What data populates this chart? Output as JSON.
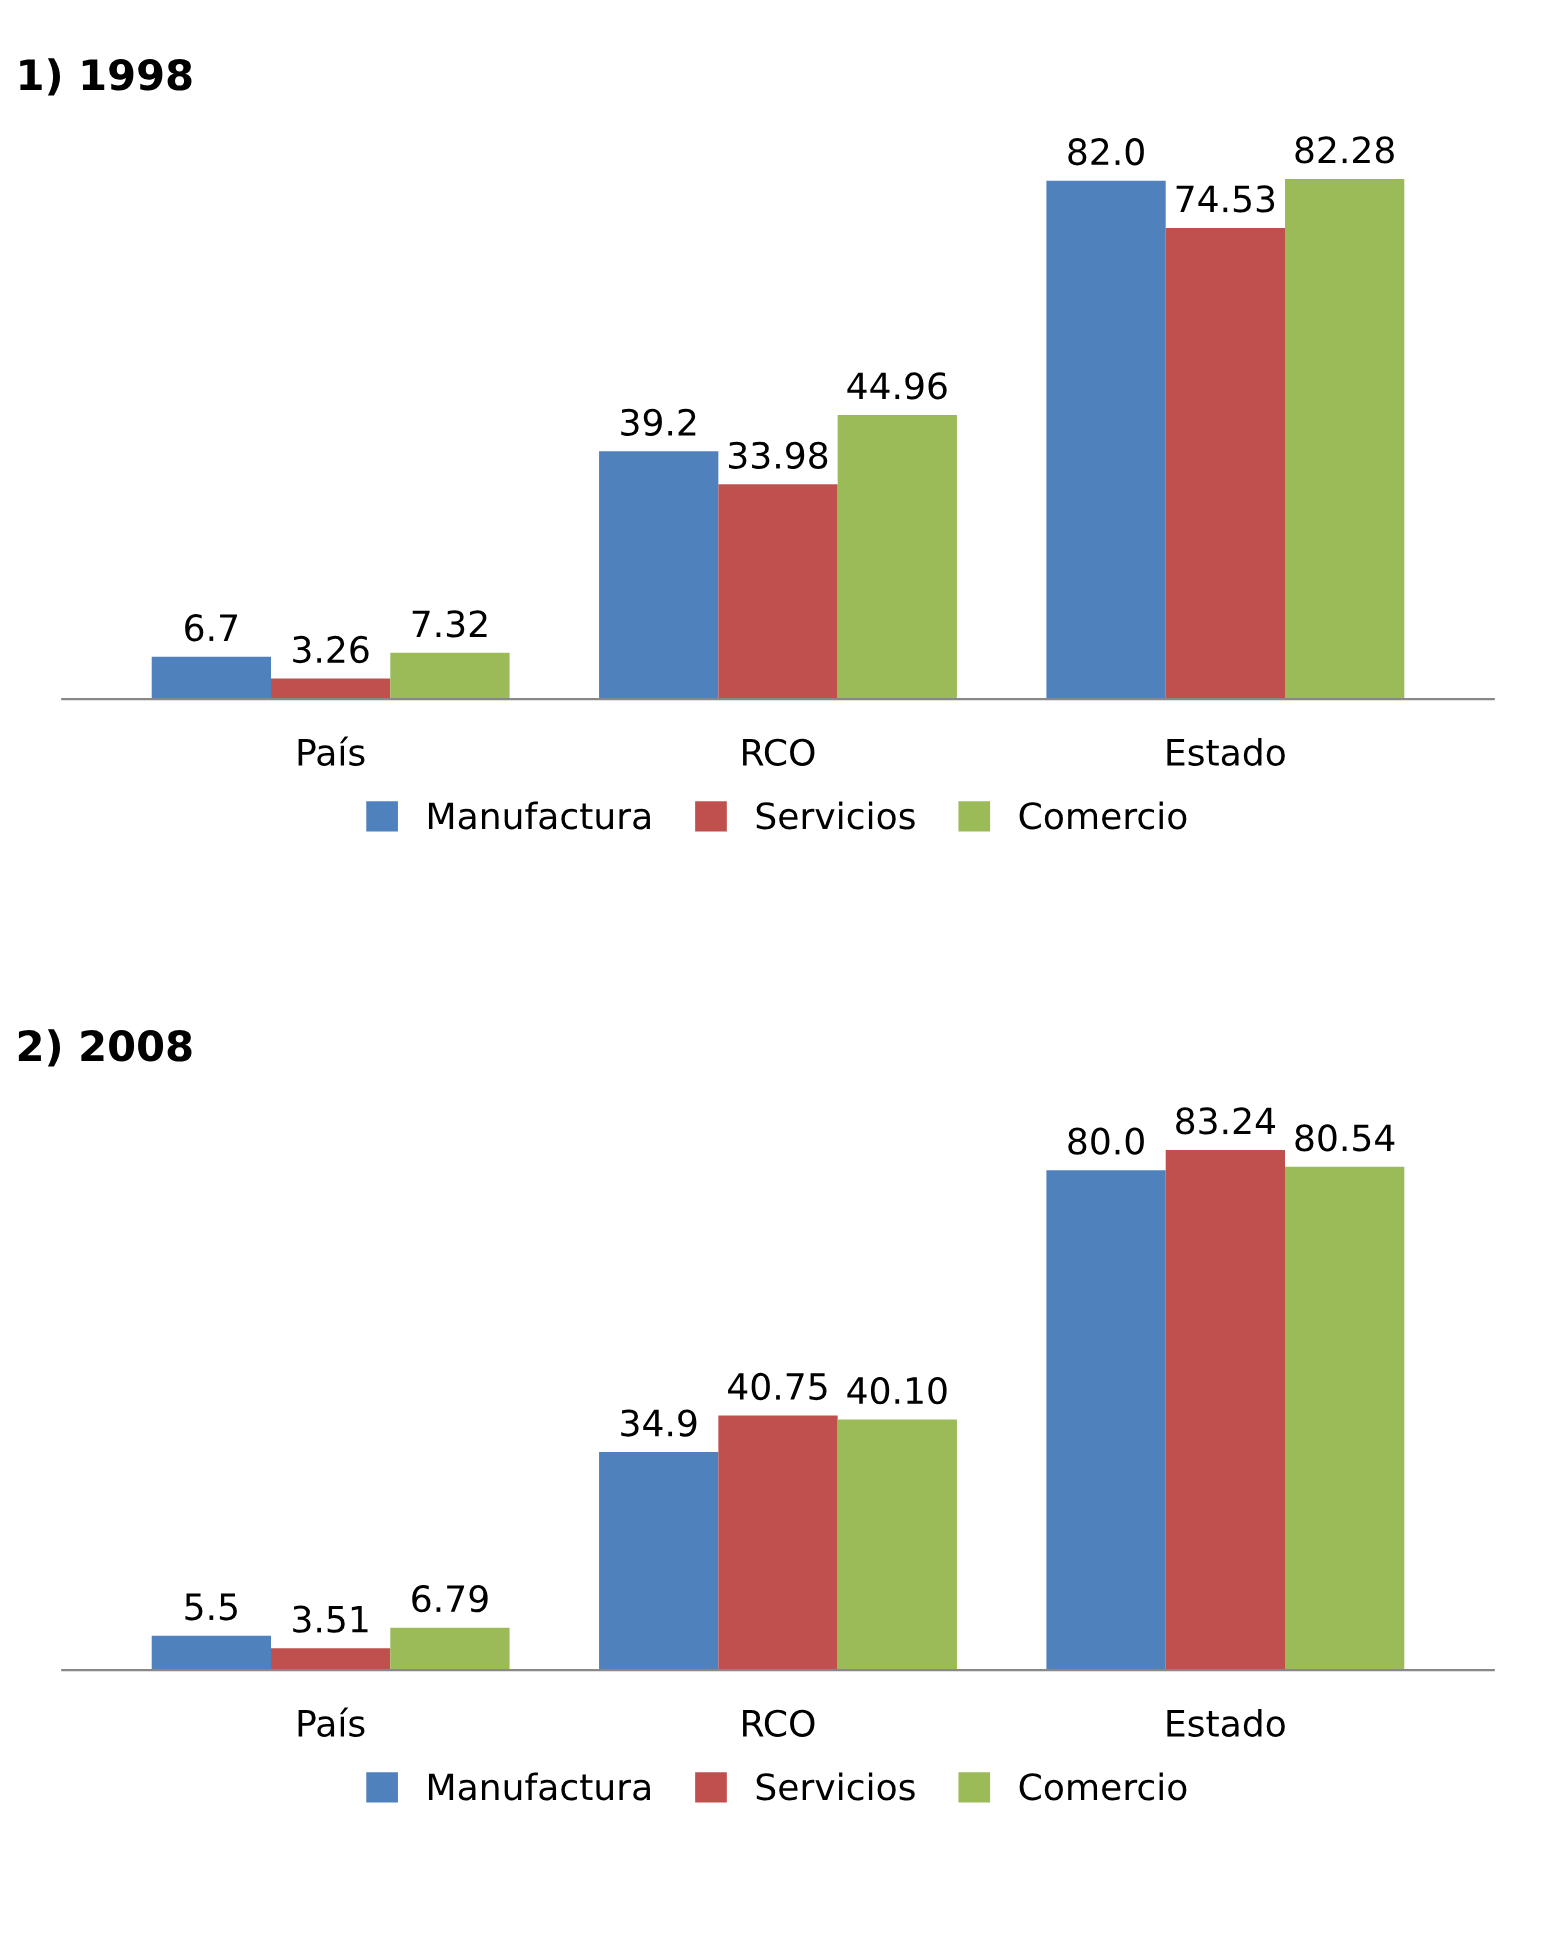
{
  "chart_data": [
    {
      "type": "bar",
      "title": "1) 1998",
      "categories": [
        "País",
        "RCO",
        "Estado"
      ],
      "legend": "bottom",
      "tick_labels": "x",
      "series": [
        {
          "name": "Manufactura",
          "color": "#4f81bd",
          "values": [
            6.7,
            39.2,
            82.0
          ],
          "value_labels": [
            "6.7",
            "39.2",
            "82.0"
          ]
        },
        {
          "name": "Servicios",
          "color": "#c0504d",
          "values": [
            3.26,
            33.98,
            74.53
          ],
          "value_labels": [
            "3.26",
            "33.98",
            "74.53"
          ]
        },
        {
          "name": "Comercio",
          "color": "#9bbb59",
          "values": [
            7.32,
            44.96,
            82.28
          ],
          "value_labels": [
            "7.32",
            "44.96",
            "82.28"
          ]
        }
      ]
    },
    {
      "type": "bar",
      "title": "2) 2008",
      "categories": [
        "País",
        "RCO",
        "Estado"
      ],
      "legend": "bottom",
      "tick_labels": "x",
      "series": [
        {
          "name": "Manufactura",
          "color": "#4f81bd",
          "values": [
            5.5,
            34.9,
            80.0
          ],
          "value_labels": [
            "5.5",
            "34.9",
            "80.0"
          ]
        },
        {
          "name": "Servicios",
          "color": "#c0504d",
          "values": [
            3.51,
            40.75,
            83.24
          ],
          "value_labels": [
            "3.51",
            "40.75",
            "83.24"
          ]
        },
        {
          "name": "Comercio",
          "color": "#9bbb59",
          "values": [
            6.79,
            40.1,
            80.54
          ],
          "value_labels": [
            "6.79",
            "40.10",
            "80.54"
          ]
        }
      ]
    }
  ]
}
